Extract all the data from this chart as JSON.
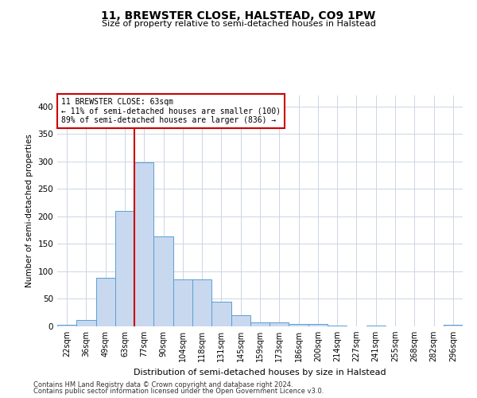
{
  "title": "11, BREWSTER CLOSE, HALSTEAD, CO9 1PW",
  "subtitle": "Size of property relative to semi-detached houses in Halstead",
  "xlabel": "Distribution of semi-detached houses by size in Halstead",
  "ylabel": "Number of semi-detached properties",
  "footer_line1": "Contains HM Land Registry data © Crown copyright and database right 2024.",
  "footer_line2": "Contains public sector information licensed under the Open Government Licence v3.0.",
  "annotation_title": "11 BREWSTER CLOSE: 63sqm",
  "annotation_line1": "← 11% of semi-detached houses are smaller (100)",
  "annotation_line2": "89% of semi-detached houses are larger (836) →",
  "bar_color": "#c8d8ee",
  "bar_edge_color": "#5a9fd4",
  "redline_color": "#cc0000",
  "redline_bin": 3,
  "categories": [
    "22sqm",
    "36sqm",
    "49sqm",
    "63sqm",
    "77sqm",
    "90sqm",
    "104sqm",
    "118sqm",
    "131sqm",
    "145sqm",
    "159sqm",
    "173sqm",
    "186sqm",
    "200sqm",
    "214sqm",
    "227sqm",
    "241sqm",
    "255sqm",
    "268sqm",
    "282sqm",
    "296sqm"
  ],
  "values": [
    3,
    12,
    88,
    210,
    298,
    163,
    85,
    85,
    45,
    20,
    7,
    7,
    4,
    5,
    1,
    0,
    1,
    0,
    0,
    0,
    3
  ],
  "num_bins": 21,
  "ylim": [
    0,
    420
  ],
  "yticks": [
    0,
    50,
    100,
    150,
    200,
    250,
    300,
    350,
    400
  ],
  "bg_color": "#ffffff",
  "grid_color": "#ccd5e5",
  "title_fontsize": 10,
  "subtitle_fontsize": 8,
  "ylabel_fontsize": 7.5,
  "xlabel_fontsize": 8,
  "tick_fontsize": 7,
  "ytick_fontsize": 7.5,
  "annotation_fontsize": 7,
  "footer_fontsize": 6
}
